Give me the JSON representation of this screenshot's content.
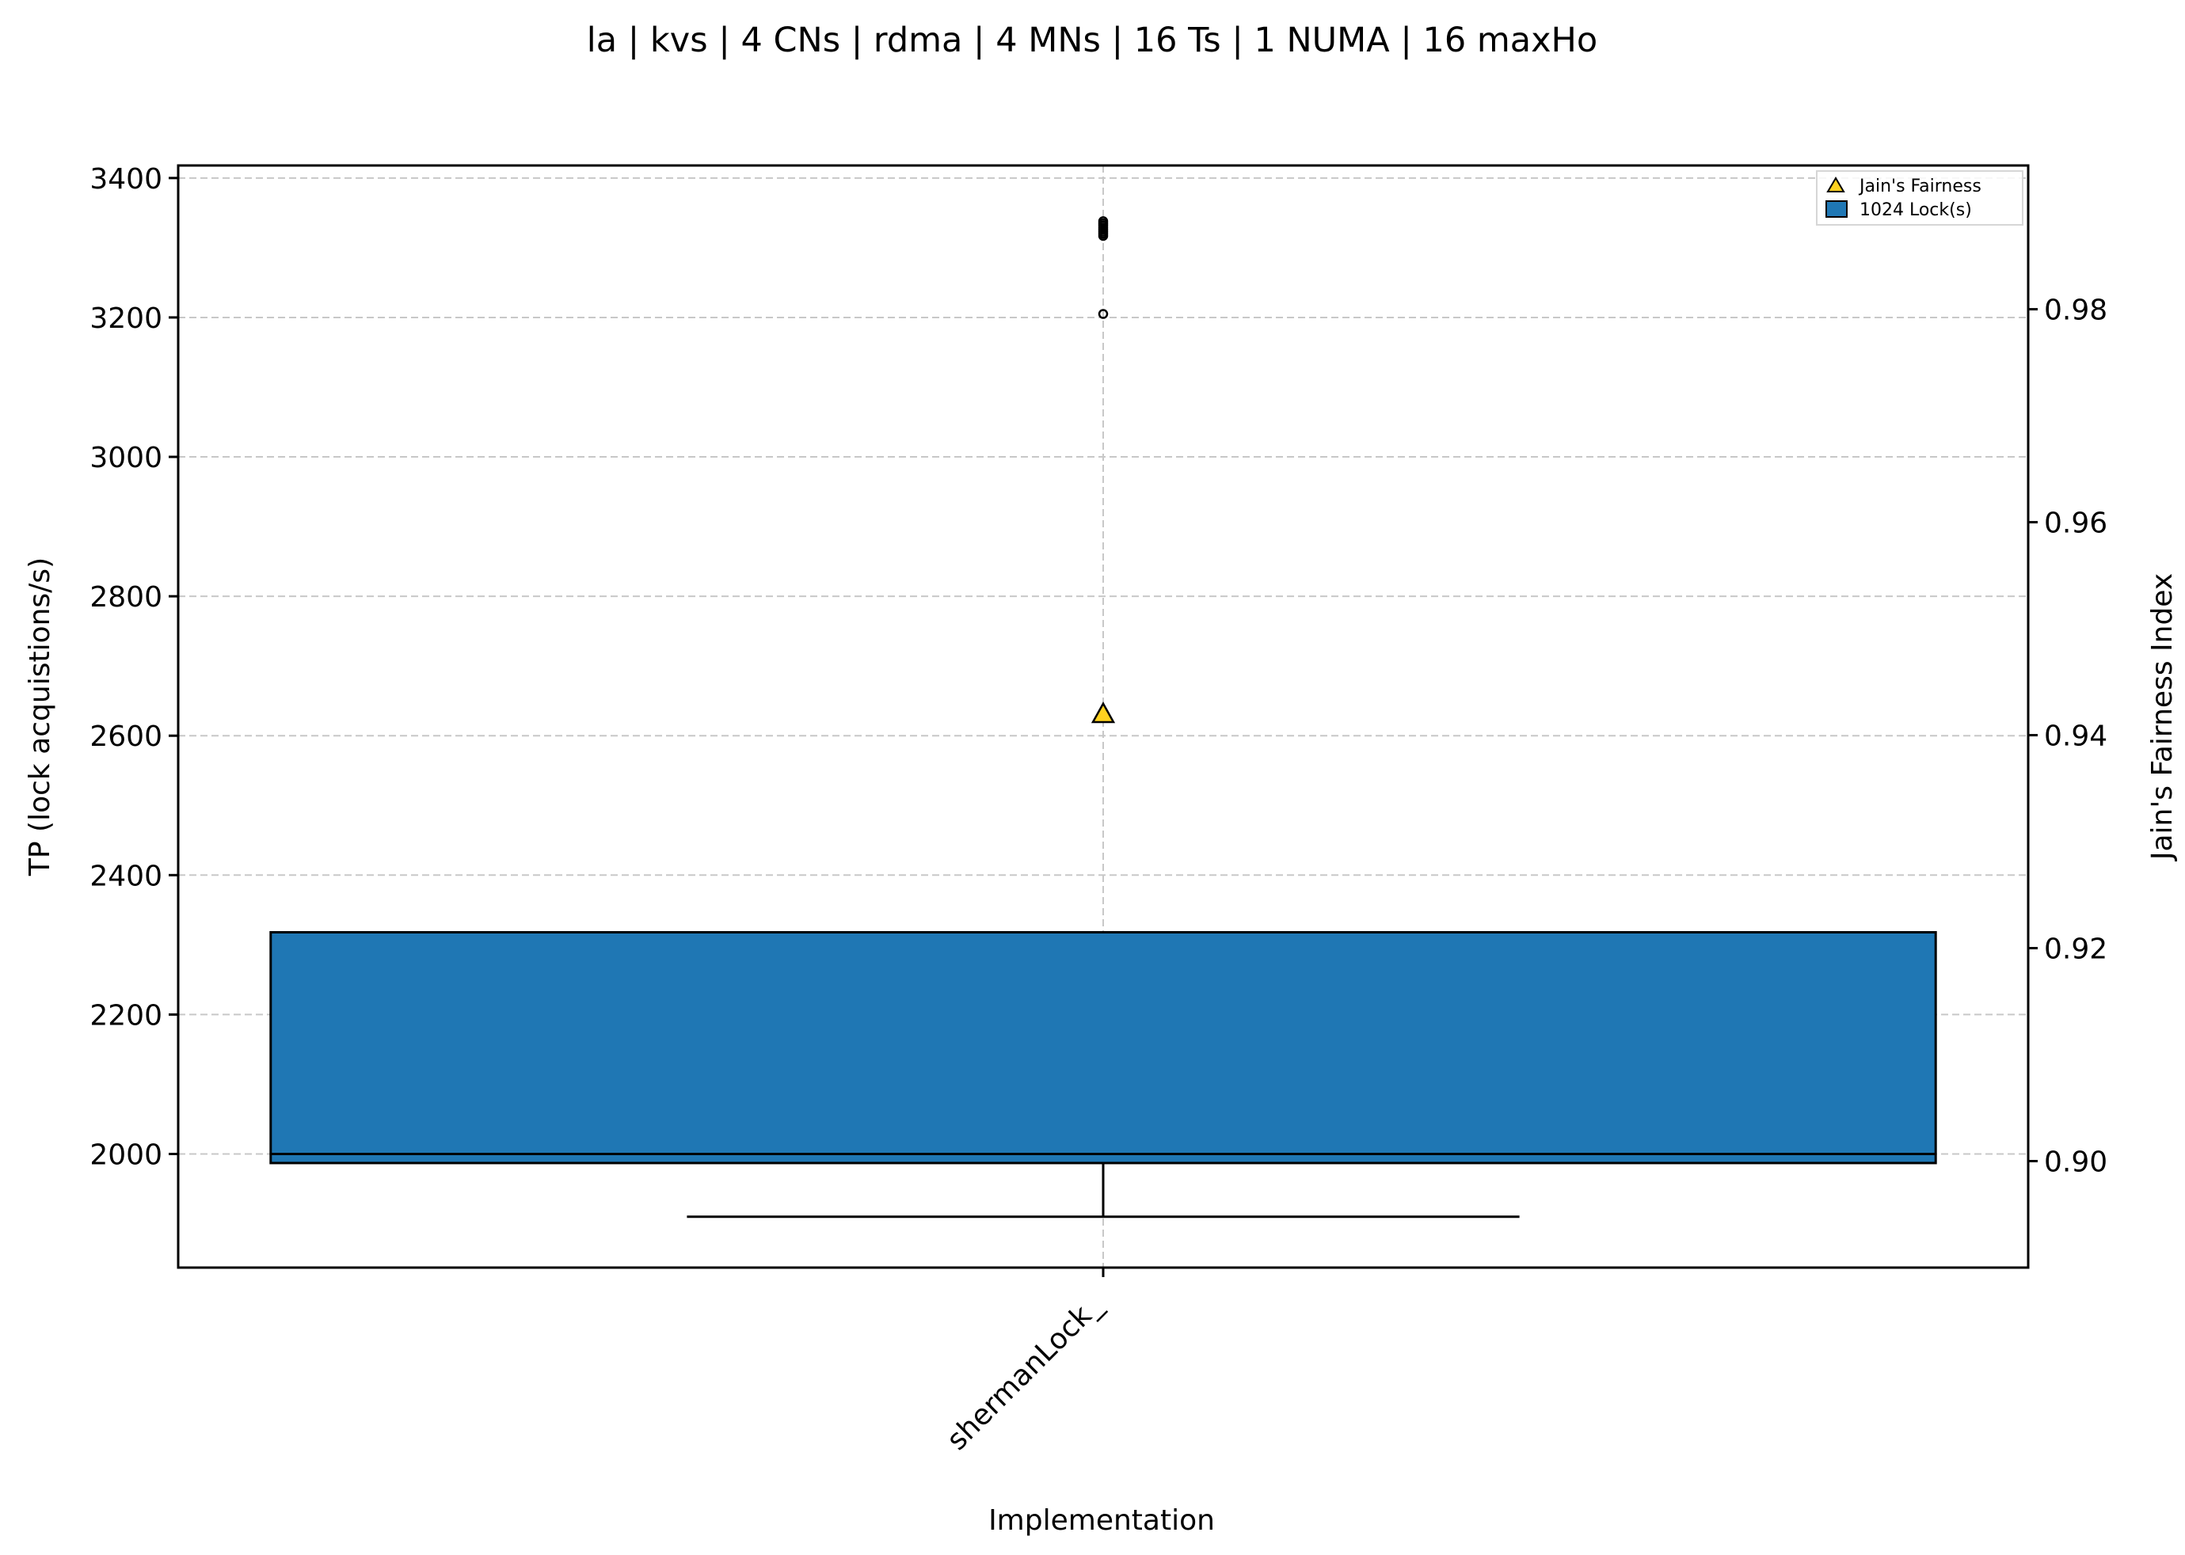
{
  "chart_data": {
    "type": "box",
    "title": "la | kvs | 4 CNs | rdma | 4 MNs | 16 Ts | 1 NUMA | 16 maxHo",
    "xlabel": "Implementation",
    "ylabel_left": "TP (lock acquistions/s)",
    "ylabel_right": "Jain's Fairness Index",
    "categories": [
      "shermanLock_"
    ],
    "ylim_left": [
      1837,
      3418
    ],
    "yticks_left": [
      2000,
      2200,
      2400,
      2600,
      2800,
      3000,
      3200,
      3400
    ],
    "ylim_right": [
      0.89,
      0.9935
    ],
    "yticks_right": [
      0.9,
      0.92,
      0.94,
      0.96,
      0.98
    ],
    "ytick_labels_right": [
      "0.90",
      "0.92",
      "0.94",
      "0.96",
      "0.98"
    ],
    "grid": true,
    "legend_position": "top-right",
    "series": [
      {
        "name": "1024 Lock(s)",
        "color": "#1f77b4",
        "boxes": [
          {
            "category": "shermanLock_",
            "whisker_low": 1910,
            "q1": 1987,
            "median": 2000,
            "q3": 2318,
            "whisker_high": 2318,
            "outliers": [
              3205,
              3317,
              3320,
              3323,
              3326,
              3329,
              3332,
              3335,
              3338
            ]
          }
        ]
      },
      {
        "name": "Jain's Fairness",
        "color": "#ffd21f",
        "marker": "triangle",
        "axis": "right",
        "points": [
          {
            "category": "shermanLock_",
            "value": 0.942
          }
        ]
      }
    ]
  }
}
